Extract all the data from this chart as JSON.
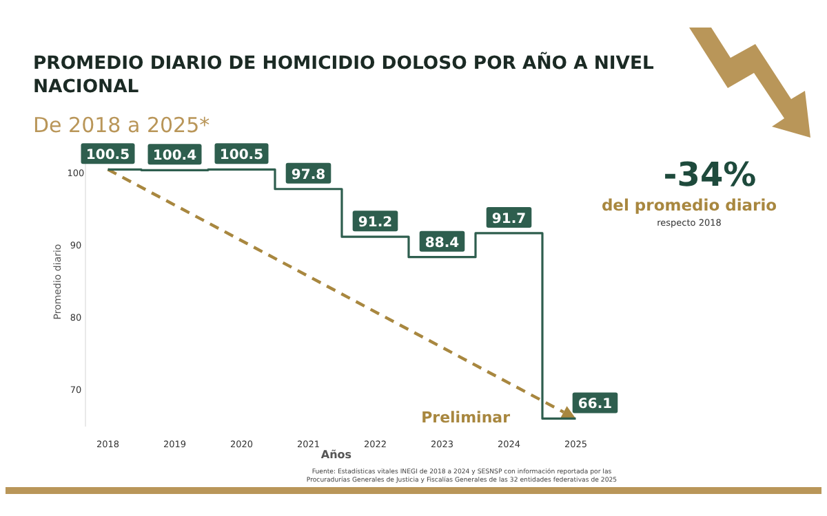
{
  "chart_data": {
    "type": "step",
    "title": "PROMEDIO DIARIO DE HOMICIDIO DOLOSO POR AÑO A NIVEL NACIONAL",
    "subtitle": "De 2018 a 2025*",
    "xlabel": "Años",
    "ylabel": "Promedio diario",
    "categories": [
      "2018",
      "2019",
      "2020",
      "2021",
      "2022",
      "2023",
      "2024",
      "2025"
    ],
    "series": [
      {
        "color": "#2e5e4e",
        "values": [
          100.5,
          100.4,
          100.5,
          97.8,
          91.2,
          88.4,
          91.7,
          66.1
        ]
      }
    ],
    "ylim": [
      65,
      103
    ],
    "yticks": [
      70,
      80,
      90,
      100
    ],
    "grid": false,
    "data_labels": true,
    "annotations": [
      "-34%",
      "del promedio diario",
      "respecto 2018",
      "Preliminar",
      "Fuente: Estadísticas vitales INEGI de 2018 a 2024 y SESNSP con información reportada por las",
      "Procuradurías Generales de Justicia y Fiscalías Generales de las 32 entidades federativas de 2025"
    ]
  }
}
